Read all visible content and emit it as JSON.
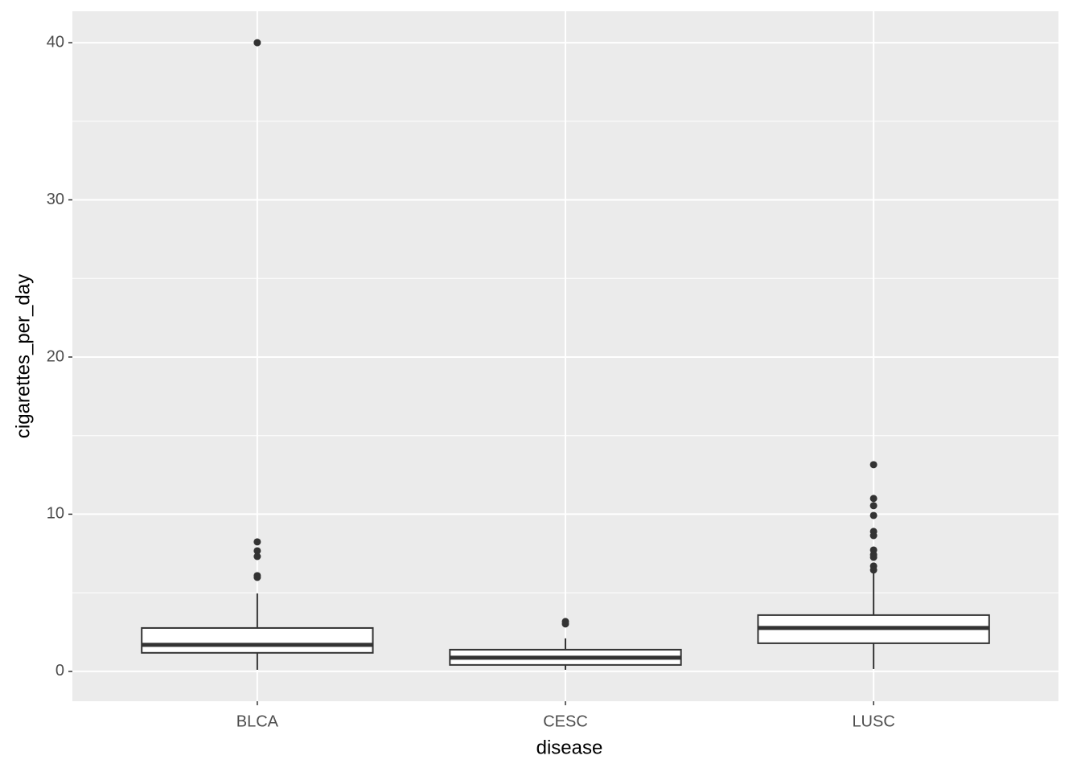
{
  "chart_data": {
    "type": "box",
    "x_label": "disease",
    "y_label": "cigarettes_per_day",
    "categories": [
      "BLCA",
      "CESC",
      "LUSC"
    ],
    "stats": [
      {
        "min": 0.1,
        "q1": 1.18,
        "median": 1.69,
        "q3": 2.76,
        "max": 4.96,
        "outliers": [
          40,
          8.24,
          7.67,
          7.31,
          6.09,
          5.98
        ]
      },
      {
        "min": 0.1,
        "q1": 0.41,
        "median": 0.87,
        "q3": 1.38,
        "max": 2.1,
        "outliers": [
          3.17,
          3.02
        ]
      },
      {
        "min": 0.15,
        "q1": 1.79,
        "median": 2.76,
        "q3": 3.58,
        "max": 6.3,
        "outliers": [
          13.15,
          11.0,
          10.54,
          9.92,
          8.9,
          8.64,
          7.72,
          7.42,
          7.26,
          6.7,
          6.45
        ]
      }
    ],
    "ylim": [
      -1.9,
      42
    ],
    "yticks": [
      0,
      10,
      20,
      30,
      40
    ],
    "grid": true
  }
}
